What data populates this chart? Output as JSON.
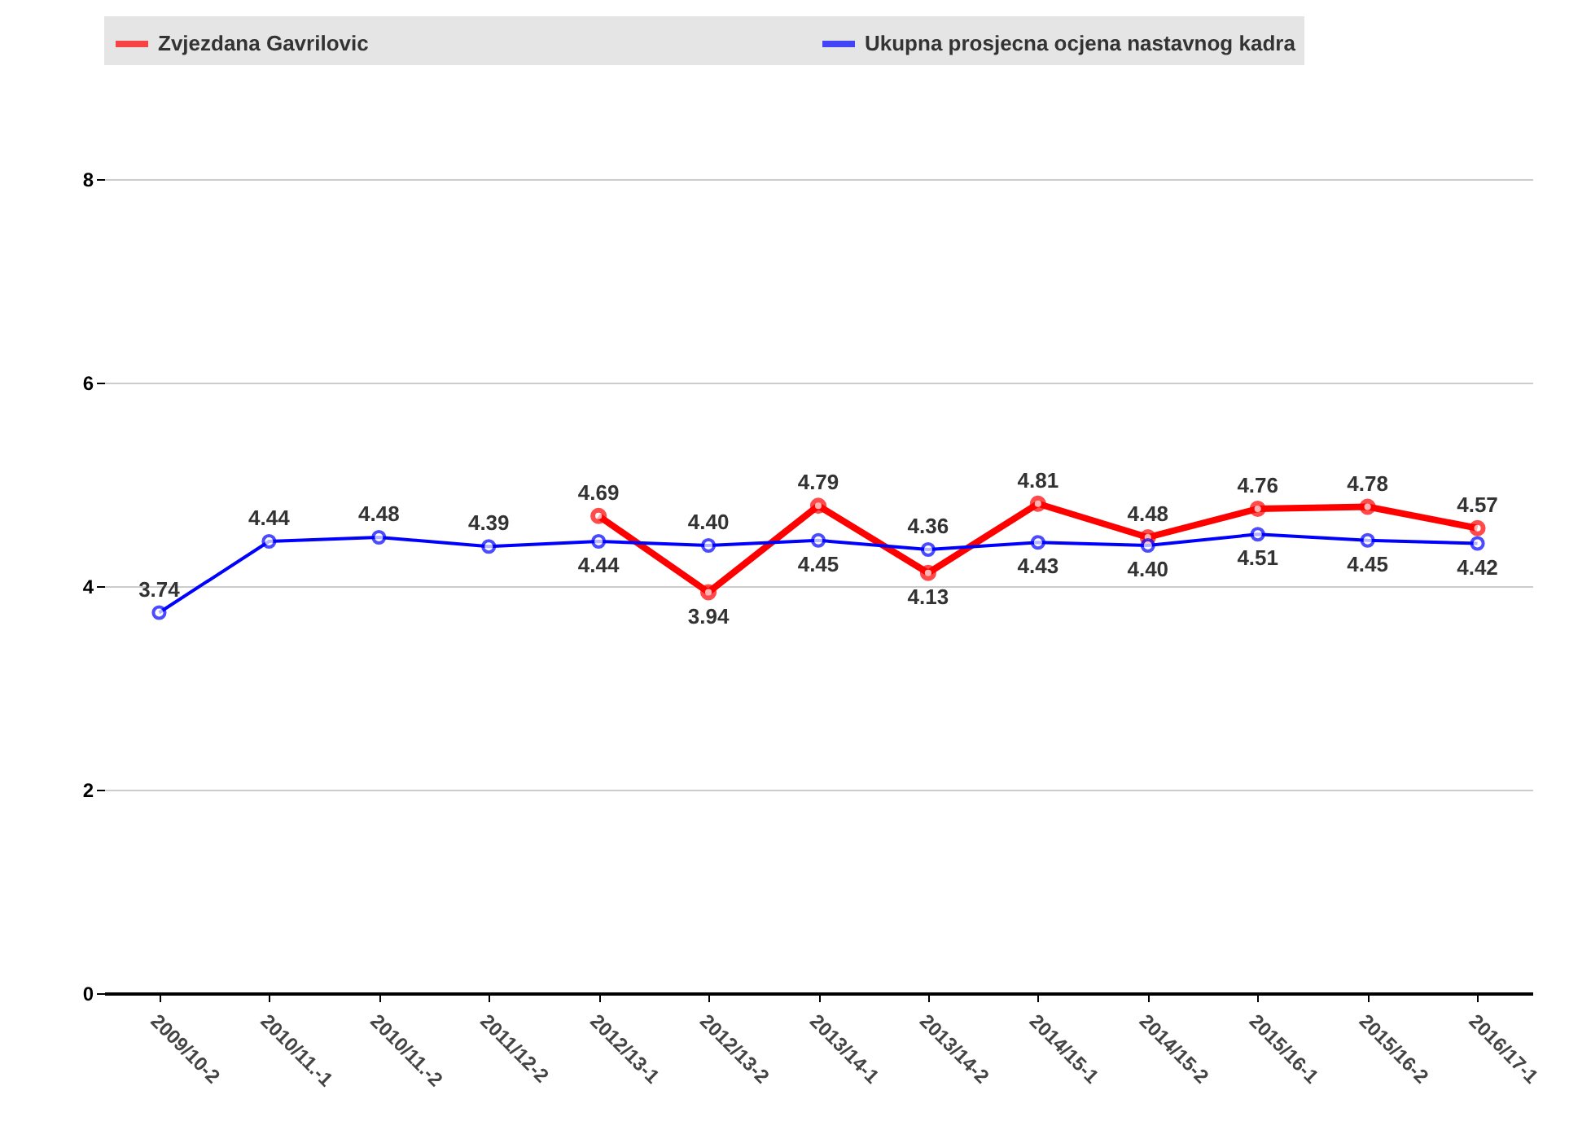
{
  "chart_data": {
    "type": "line",
    "categories": [
      "2009/10-2",
      "2010/11.-1",
      "2010/11.-2",
      "2011/12-2",
      "2012/13-1",
      "2012/13-2",
      "2013/14-1",
      "2013/14-2",
      "2014/15-1",
      "2014/15-2",
      "2015/16-1",
      "2015/16-2",
      "2016/17-1"
    ],
    "series": [
      {
        "name": "Zvjezdana Gavrilovic",
        "color": "#ff0000",
        "values": [
          null,
          null,
          null,
          null,
          4.69,
          3.94,
          4.79,
          4.13,
          4.81,
          4.48,
          4.76,
          4.78,
          4.57
        ],
        "value_labels": [
          null,
          null,
          null,
          null,
          "4.69",
          "3.94",
          "4.79",
          "4.13",
          "4.81",
          "4.48",
          "4.76",
          "4.78",
          "4.57"
        ]
      },
      {
        "name": "Ukupna prosjecna ocjena nastavnog kadra",
        "color": "#0000ff",
        "values": [
          3.74,
          4.44,
          4.48,
          4.39,
          4.44,
          4.4,
          4.45,
          4.36,
          4.43,
          4.4,
          4.51,
          4.45,
          4.42
        ],
        "value_labels": [
          "3.74",
          "4.44",
          "4.48",
          "4.39",
          "4.44",
          "4.40",
          "4.45",
          "4.36",
          "4.43",
          "4.40",
          "4.51",
          "4.45",
          "4.42"
        ]
      }
    ],
    "ylim": [
      0,
      8
    ],
    "yticks": [
      0,
      2,
      4,
      6,
      8
    ],
    "grid": "y",
    "legend": "top",
    "marker": "circle",
    "line_style": "solid"
  }
}
